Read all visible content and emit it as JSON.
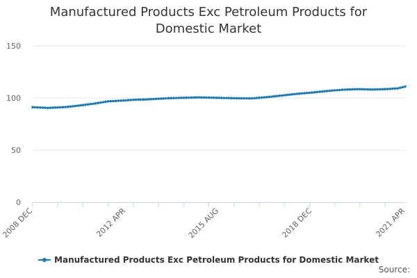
{
  "chart_data": {
    "type": "line",
    "title": "Manufactured Products Exc Petroleum Products for Domestic Market",
    "xlabel": "",
    "ylabel": "",
    "ylim": [
      0,
      150
    ],
    "y_ticks": [
      0,
      50,
      100,
      150
    ],
    "x_tick_labels": [
      "2008 DEC",
      "2012 APR",
      "2015 AUG",
      "2018 DEC",
      "2021 APR"
    ],
    "x_start": "2008-12",
    "x_end": "2021-04",
    "grid": true,
    "legend_position": "bottom",
    "series": [
      {
        "name": "Manufactured Products Exc Petroleum Products for Domestic Market",
        "color": "#1a7ab5",
        "x": [
          "2008-12",
          "2009-06",
          "2010-01",
          "2010-06",
          "2011-01",
          "2011-06",
          "2012-01",
          "2012-04",
          "2012-10",
          "2013-06",
          "2014-01",
          "2014-06",
          "2015-01",
          "2015-08",
          "2016-03",
          "2016-09",
          "2017-03",
          "2017-09",
          "2018-03",
          "2018-09",
          "2019-03",
          "2019-09",
          "2020-03",
          "2020-09",
          "2021-01",
          "2021-04"
        ],
        "values": [
          91.2,
          90.5,
          91.3,
          92.6,
          94.8,
          96.8,
          97.7,
          98.3,
          98.7,
          99.8,
          100.3,
          100.6,
          100.2,
          99.8,
          99.6,
          100.8,
          102.4,
          104.0,
          105.2,
          106.7,
          107.9,
          108.5,
          108.1,
          108.6,
          109.2,
          111.0
        ]
      }
    ]
  },
  "source_label": "Source:"
}
